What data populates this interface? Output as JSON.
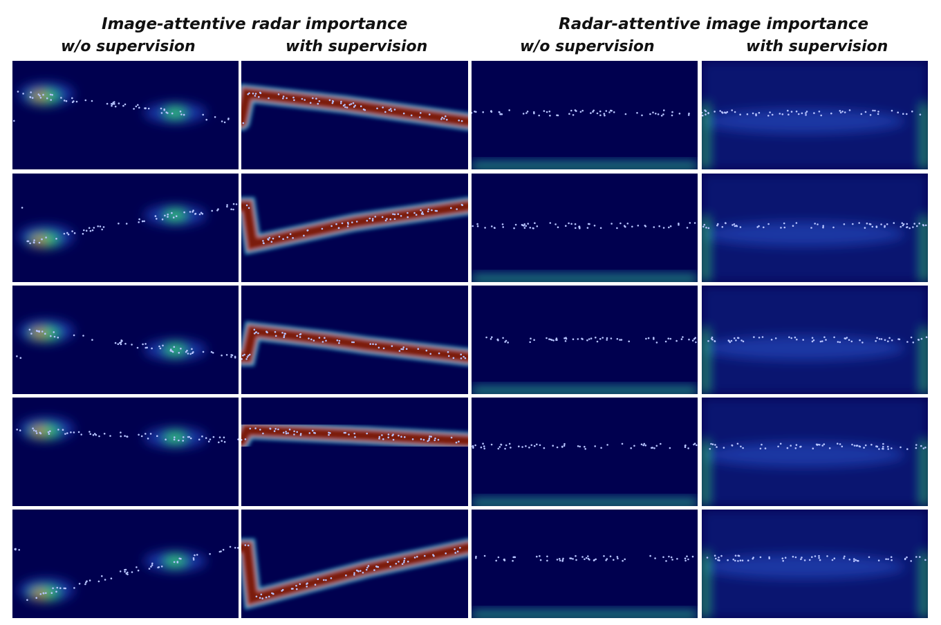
{
  "headers": {
    "left_group": "Image-attentive radar importance",
    "right_group": "Radar-attentive image importance",
    "columns": [
      "w/o supervision",
      "with supervision",
      "w/o supervision",
      "with supervision"
    ]
  },
  "grid": {
    "rows": 5,
    "columns": 4
  },
  "colormap": [
    "#00004f",
    "#1f3fb0",
    "#26a0c8",
    "#35c96e",
    "#e6e645",
    "#d9532a",
    "#7a1a0b",
    "#4a0f08"
  ],
  "point_color": "#b7c4ff"
}
